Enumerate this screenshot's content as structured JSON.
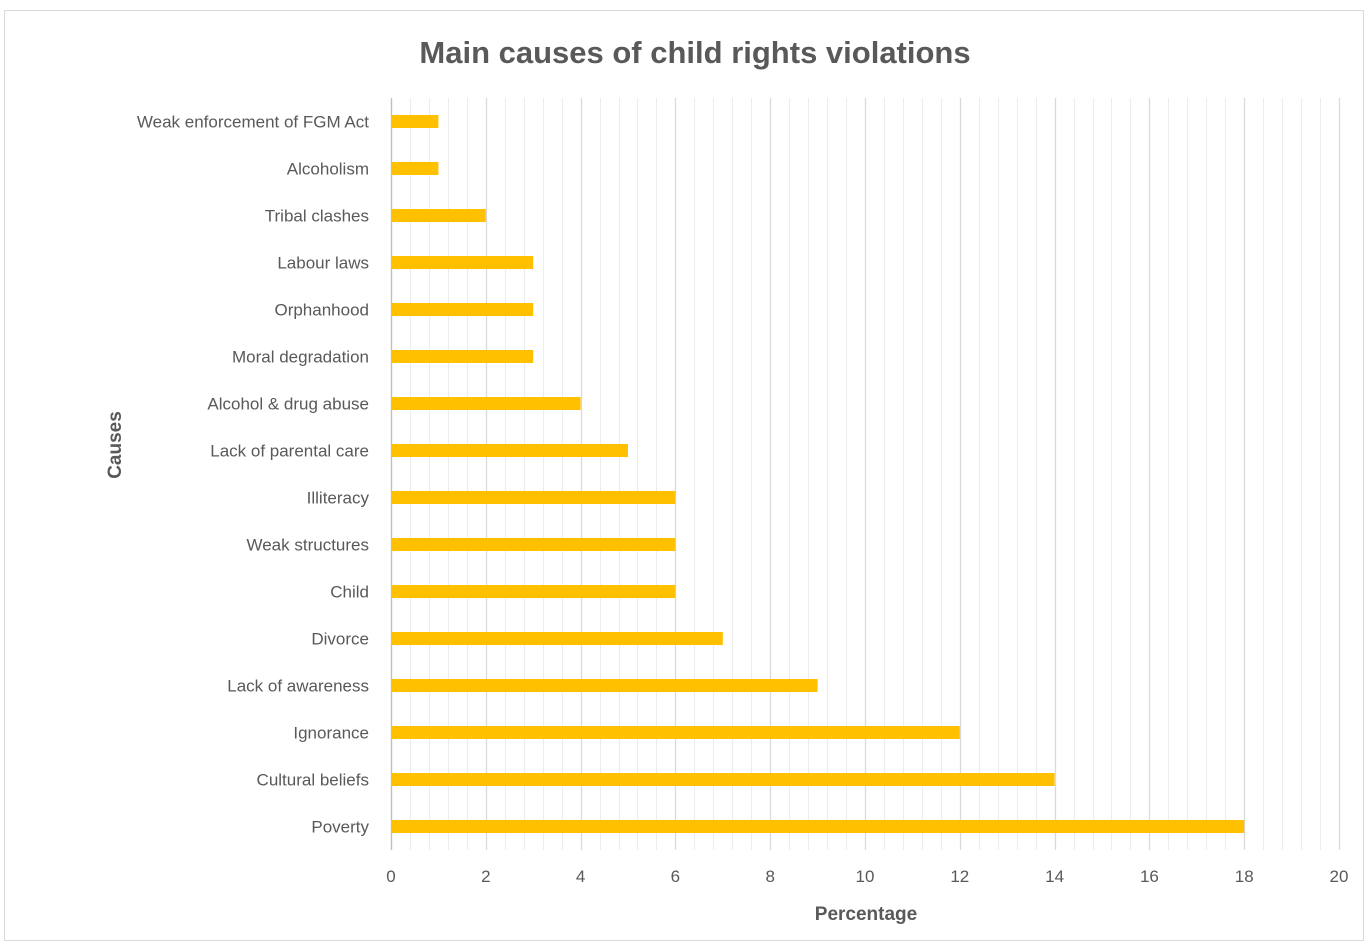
{
  "chart_data": {
    "type": "bar",
    "orientation": "horizontal",
    "title": "Main causes of child rights violations",
    "xlabel": "Percentage",
    "ylabel": "Causes",
    "categories": [
      "Poverty",
      "Cultural beliefs",
      "Ignorance",
      "Lack of awareness",
      "Divorce",
      "Child",
      "Weak structures",
      "Illiteracy",
      "Lack of parental care",
      "Alcohol & drug abuse",
      "Moral degradation",
      "Orphanhood",
      "Labour laws",
      "Tribal clashes",
      "Alcoholism",
      "Weak enforcement of FGM Act"
    ],
    "values": [
      18,
      14,
      12,
      9,
      7,
      6,
      6,
      6,
      5,
      4,
      3,
      3,
      3,
      2,
      1,
      1
    ],
    "xlim": [
      0,
      20
    ],
    "xticks": [
      "0",
      "2",
      "4",
      "6",
      "8",
      "10",
      "12",
      "14",
      "16",
      "18",
      "20"
    ],
    "grid": true,
    "legend": "none",
    "bar_color": "#FFC000",
    "major_grid_color": "#d9d9d9",
    "minor_grid_color": "#ececec"
  }
}
